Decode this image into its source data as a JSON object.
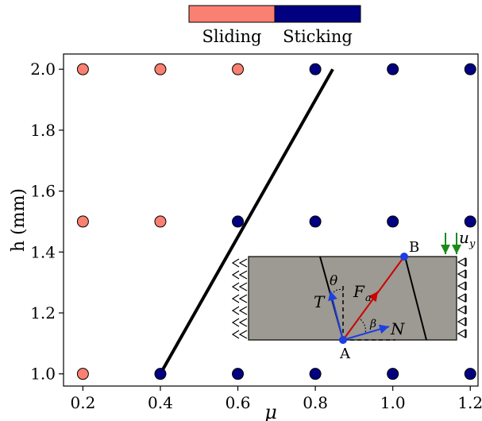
{
  "chart_data": {
    "type": "scatter",
    "xlabel": "μ",
    "ylabel": "h (mm)",
    "xlim": [
      0.15,
      1.22
    ],
    "ylim": [
      0.96,
      2.05
    ],
    "x_ticks": [
      0.2,
      0.4,
      0.6,
      0.8,
      1.0,
      1.2
    ],
    "y_ticks": [
      1.0,
      1.2,
      1.4,
      1.6,
      1.8,
      2.0
    ],
    "x_tick_labels": [
      "0.2",
      "0.4",
      "0.6",
      "0.8",
      "1.0",
      "1.2"
    ],
    "y_tick_labels": [
      "1.0",
      "1.2",
      "1.4",
      "1.6",
      "1.8",
      "2.0"
    ],
    "grid": false,
    "legend": {
      "placement": "top-center",
      "entries": [
        {
          "name": "Sliding",
          "color": "#fa8072"
        },
        {
          "name": "Sticking",
          "color": "#000080"
        }
      ]
    },
    "series": [
      {
        "name": "Sliding",
        "color": "#fa8072",
        "points": [
          {
            "x": 0.2,
            "y": 2.0
          },
          {
            "x": 0.4,
            "y": 2.0
          },
          {
            "x": 0.6,
            "y": 2.0
          },
          {
            "x": 0.2,
            "y": 1.5
          },
          {
            "x": 0.4,
            "y": 1.5
          },
          {
            "x": 0.2,
            "y": 1.0
          }
        ]
      },
      {
        "name": "Sticking",
        "color": "#000080",
        "points": [
          {
            "x": 0.8,
            "y": 2.0
          },
          {
            "x": 1.0,
            "y": 2.0
          },
          {
            "x": 1.2,
            "y": 2.0
          },
          {
            "x": 0.6,
            "y": 1.5
          },
          {
            "x": 0.8,
            "y": 1.5
          },
          {
            "x": 1.0,
            "y": 1.5
          },
          {
            "x": 1.2,
            "y": 1.5
          },
          {
            "x": 0.4,
            "y": 1.0
          },
          {
            "x": 0.6,
            "y": 1.0
          },
          {
            "x": 0.8,
            "y": 1.0
          },
          {
            "x": 1.0,
            "y": 1.0
          },
          {
            "x": 1.2,
            "y": 1.0
          }
        ]
      }
    ],
    "boundary_line": {
      "x": [
        0.4,
        0.845
      ],
      "y": [
        1.0,
        2.0
      ],
      "color": "#000000"
    },
    "inset": {
      "labels": {
        "A": "A",
        "B": "B",
        "T": "T",
        "N": "N",
        "Fa": "F",
        "Fa_sub": "a",
        "theta": "θ",
        "beta": "β",
        "uy": "u",
        "uy_sub": "y"
      },
      "colors": {
        "block": "#9c9a92",
        "force": "#cc0000",
        "vectors": "#1f3fe0",
        "arrows": "#1a8a1a"
      }
    }
  }
}
